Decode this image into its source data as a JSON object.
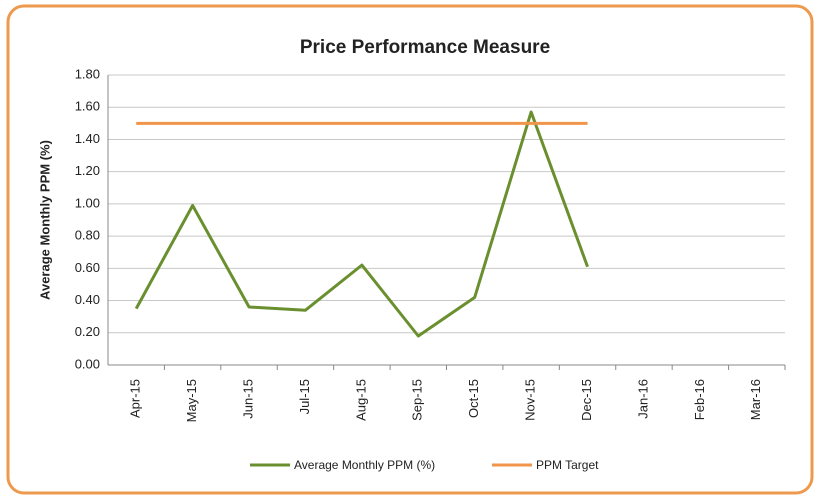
{
  "chart_data": {
    "type": "line",
    "title": "Price Performance Measure",
    "y_label": "Average Monthly PPM (%)",
    "categories": [
      "Apr-15",
      "May-15",
      "Jun-15",
      "Jul-15",
      "Aug-15",
      "Sep-15",
      "Oct-15",
      "Nov-15",
      "Dec-15",
      "Jan-16",
      "Feb-16",
      "Mar-16"
    ],
    "series": [
      {
        "name": "Average Monthly PPM (%)",
        "color": "#6a8f2e",
        "values": [
          0.35,
          0.99,
          0.36,
          0.34,
          0.62,
          0.18,
          0.42,
          1.57,
          0.61,
          null,
          null,
          null
        ]
      },
      {
        "name": "PPM Target",
        "color": "#f0954a",
        "values": [
          1.5,
          1.5,
          1.5,
          1.5,
          1.5,
          1.5,
          1.5,
          1.5,
          1.5,
          null,
          null,
          null
        ]
      }
    ],
    "ylim": [
      0,
      1.8
    ],
    "yticks": [
      {
        "value": 0,
        "label": "0.00"
      },
      {
        "value": 0.2,
        "label": "0.20"
      },
      {
        "value": 0.4,
        "label": "0.40"
      },
      {
        "value": 0.6,
        "label": "0.60"
      },
      {
        "value": 0.8,
        "label": "0.80"
      },
      {
        "value": 1,
        "label": "1.00"
      },
      {
        "value": 1.2,
        "label": "1.20"
      },
      {
        "value": 1.4,
        "label": "1.40"
      },
      {
        "value": 1.6,
        "label": "1.60"
      },
      {
        "value": 1.8,
        "label": "1.80"
      }
    ],
    "grid": true,
    "legend": "bottom"
  }
}
